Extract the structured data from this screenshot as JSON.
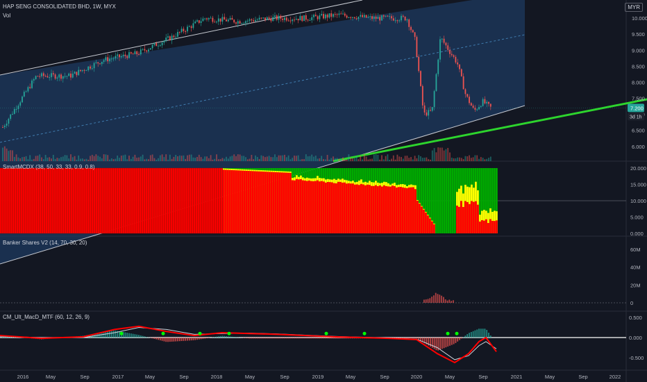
{
  "header": {
    "symbol": "HAP SENG CONSOLIDATED BHD, 1W, MYX",
    "vol_label": "Vol",
    "currency": "MYR"
  },
  "price_axis": {
    "ticks": [
      "10.000",
      "9.500",
      "9.000",
      "8.500",
      "8.000",
      "7.500",
      "7.000",
      "6.500",
      "6.000"
    ],
    "last_price": "7.200",
    "countdown": "3d 1h"
  },
  "time_axis": {
    "ticks": [
      "2016",
      "May",
      "Sep",
      "2017",
      "May",
      "Sep",
      "2018",
      "May",
      "Sep",
      "2019",
      "May",
      "Sep",
      "2020",
      "May",
      "Sep",
      "2021",
      "May",
      "Sep",
      "2022"
    ]
  },
  "panels": {
    "smartmcdx": {
      "title": "SmartMCDX (38, 50, 33, 33, 0.9, 0.8)",
      "ticks": [
        "20.000",
        "15.000",
        "10.000",
        "5.000",
        "0.000"
      ]
    },
    "banker": {
      "title": "Banker Shares V2 (14, 70, 30, 20)",
      "ticks": [
        "60M",
        "40M",
        "20M",
        "0"
      ]
    },
    "macd": {
      "title": "CM_Ult_MacD_MTF (60, 12, 26, 9)",
      "ticks": [
        "0.500",
        "0.000",
        "-0.500"
      ]
    }
  },
  "colors": {
    "background": "#131722",
    "channel_fill": "#1e3a5f",
    "up": "#26a69a",
    "down": "#ef5350",
    "trendline": "#2dd42d",
    "mcdx_red": "#ff0000",
    "mcdx_green": "#00aa00",
    "mcdx_yellow": "#ffff00",
    "macd_fast": "#ff0000",
    "macd_cross": "#00ff00",
    "hist_up": "#26a69a",
    "hist_down": "#ef5350"
  },
  "chart_data": {
    "type": "line",
    "title": "HAP SENG CONSOLIDATED BHD, 1W, MYX",
    "x_range": [
      "2016-01",
      "2020-11"
    ],
    "ylim": [
      5.8,
      10.5
    ],
    "x": [
      "2016-01",
      "2016-05",
      "2016-09",
      "2017-01",
      "2017-05",
      "2017-09",
      "2018-01",
      "2018-05",
      "2018-09",
      "2019-01",
      "2019-05",
      "2019-09",
      "2020-01",
      "2020-02",
      "2020-03",
      "2020-04",
      "2020-05",
      "2020-06",
      "2020-07",
      "2020-08",
      "2020-09",
      "2020-10",
      "2020-11"
    ],
    "series": [
      {
        "values": [
          6.6,
          8.2,
          8.2,
          8.7,
          8.9,
          9.4,
          10.0,
          9.9,
          10.0,
          10.0,
          10.1,
          10.0,
          10.0,
          9.3,
          7.0,
          7.1,
          9.4,
          9.0,
          8.6,
          7.6,
          7.1,
          7.4,
          7.2
        ]
      }
    ],
    "last_price": 7.2,
    "grid": false
  }
}
